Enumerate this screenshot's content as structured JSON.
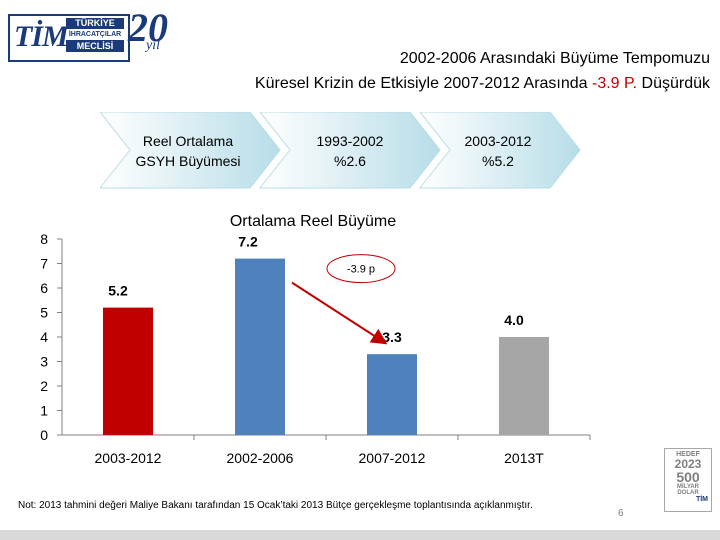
{
  "logo": {
    "brand": "TİM",
    "line1": "TÜRKİYE",
    "line2": "İHRACATÇILAR",
    "line3": "MECLİSİ",
    "anniversary": "20",
    "anniversary_suffix": "yıl"
  },
  "header": {
    "title_line1": "2002-2006 Arasındaki Büyüme Tempomuzu",
    "title_line2_pre": "Küresel Krizin de Etkisiyle 2007-2012 Arasında ",
    "title_line2_highlight": "-3.9 P.",
    "title_line2_post": " Düşürdük"
  },
  "chevrons": [
    {
      "line1": "Reel Ortalama",
      "line2": "GSYH Büyümesi"
    },
    {
      "line1": "1993-2002",
      "line2": "%2.6"
    },
    {
      "line1": "2003-2012",
      "line2": "%5.2"
    }
  ],
  "colors": {
    "red": "#c00000",
    "blue": "#4f81bd",
    "gray": "#a6a6a6",
    "arrow": "#c00000",
    "chevron_fill_light": "#ffffff",
    "chevron_fill_dark": "#b7dde8"
  },
  "chart_data": {
    "type": "bar",
    "title": "Ortalama Reel Büyüme",
    "categories": [
      "2003-2012",
      "2002-2006",
      "2007-2012",
      "2013T"
    ],
    "values": [
      5.2,
      7.2,
      3.3,
      4.0
    ],
    "data_labels": [
      "5.2",
      "7.2",
      "3.3",
      "4.0"
    ],
    "bar_colors": [
      "#c00000",
      "#4f81bd",
      "#4f81bd",
      "#a6a6a6"
    ],
    "ylim": [
      0,
      8
    ],
    "yticks": [
      "0",
      "1",
      "2",
      "3",
      "4",
      "5",
      "6",
      "7",
      "8"
    ],
    "grid": false,
    "annotation": {
      "text": "-3.9 p",
      "from_category": "2002-2006",
      "to_category": "2007-2012"
    }
  },
  "footer": {
    "note": "Not: 2013 tahmini değeri Maliye Bakanı tarafından 15 Ocak’taki 2013 Bütçe gerçekleşme toplantısında açıklanmıştır.",
    "page_number": "6"
  },
  "hedef_badge": {
    "line1": "HEDEF",
    "line2": "2023",
    "line3": "500",
    "line4": "MİLYAR",
    "line5": "DOLAR",
    "line6": "TİM"
  }
}
